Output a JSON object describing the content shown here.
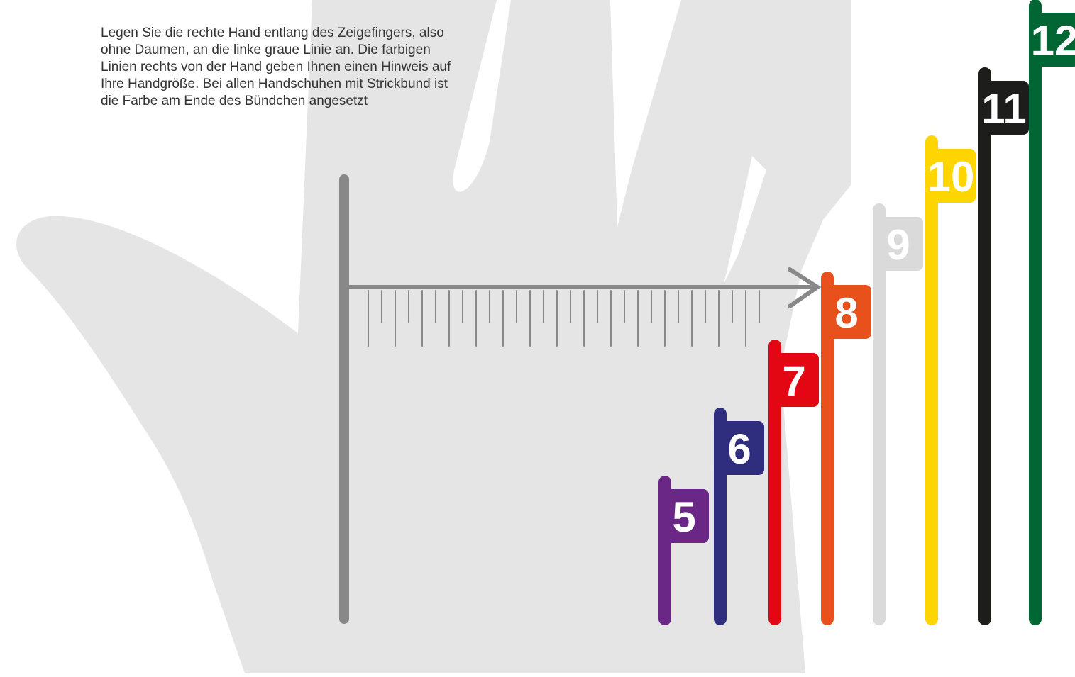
{
  "instruction": [
    "Legen Sie die rechte Hand entlang des Zeigefingers, also",
    "ohne Daumen, an die linke graue Linie an. Die farbigen",
    "Linien rechts von der Hand geben Ihnen einen Hinweis auf",
    "Ihre Handgröße. Bei allen Handschuhen mit Strickbund ist",
    "die Farbe am Ende des Bündchen angesetzt"
  ],
  "sizes": [
    {
      "label": "5",
      "color": "#6b2785"
    },
    {
      "label": "6",
      "color": "#2e2d7e"
    },
    {
      "label": "7",
      "color": "#e30613"
    },
    {
      "label": "8",
      "color": "#e8501c"
    },
    {
      "label": "9",
      "color": "#dadada"
    },
    {
      "label": "10",
      "color": "#ffd500"
    },
    {
      "label": "11",
      "color": "#1d1d1b"
    },
    {
      "label": "12",
      "color": "#006633"
    }
  ]
}
